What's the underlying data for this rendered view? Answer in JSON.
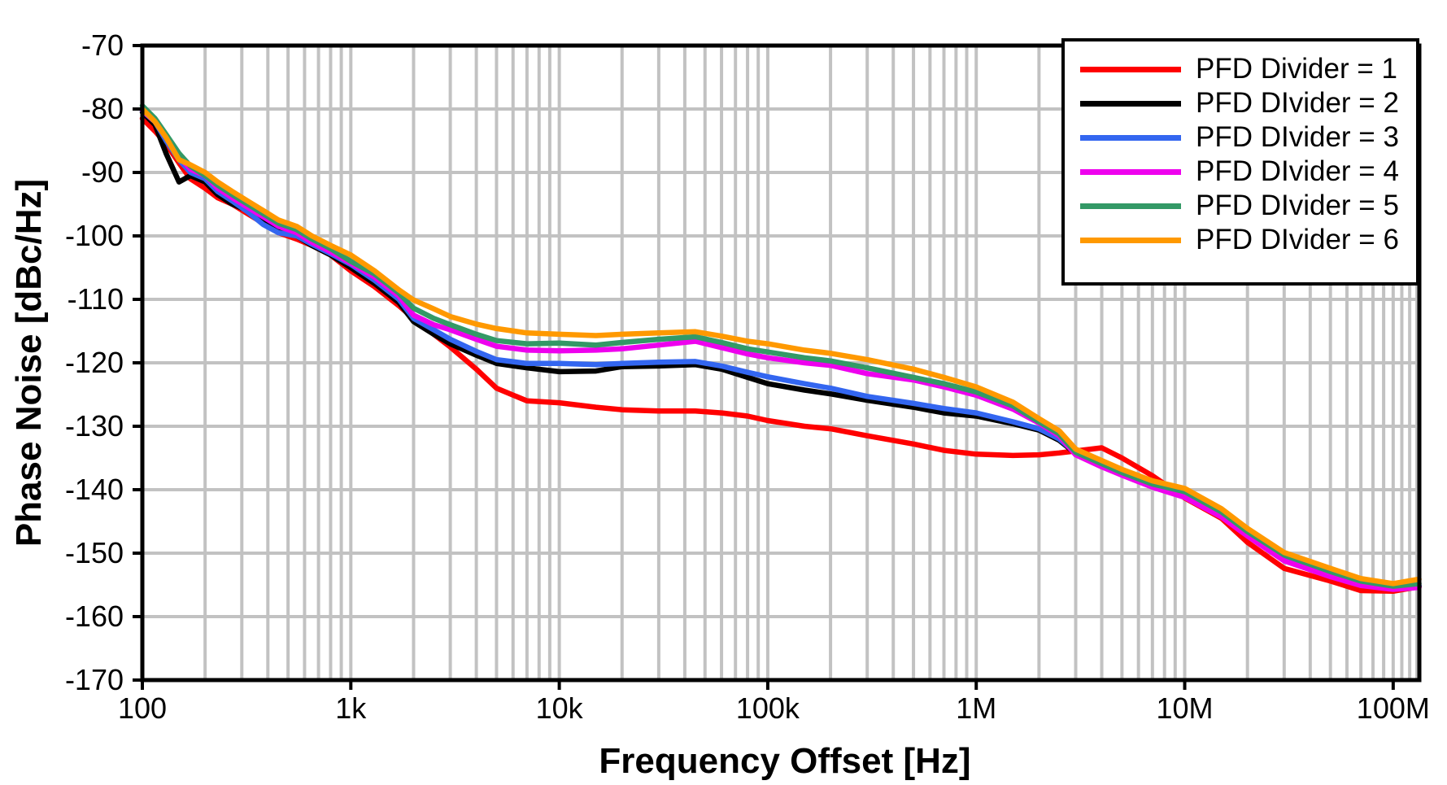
{
  "chart_data": {
    "type": "line",
    "title": "",
    "xlabel": "Frequency Offset [Hz]",
    "ylabel": "Phase Noise [dBc/Hz]",
    "x_scale": "log",
    "xlim": [
      100,
      133500000
    ],
    "ylim": [
      -170,
      -70
    ],
    "grid": true,
    "grid_color": "#c2c2c2",
    "legend_position": "top-right",
    "y_ticks": [
      -70,
      -80,
      -90,
      -100,
      -110,
      -120,
      -130,
      -140,
      -150,
      -160,
      -170
    ],
    "x_ticks": [
      {
        "value": 100,
        "label": "100"
      },
      {
        "value": 1000,
        "label": "1k"
      },
      {
        "value": 10000,
        "label": "10k"
      },
      {
        "value": 100000,
        "label": "100k"
      },
      {
        "value": 1000000,
        "label": "1M"
      },
      {
        "value": 10000000,
        "label": "10M"
      },
      {
        "value": 100000000,
        "label": "100M"
      }
    ],
    "x": [
      100,
      115,
      130,
      150,
      170,
      200,
      230,
      270,
      320,
      380,
      450,
      550,
      650,
      800,
      1000,
      1300,
      1700,
      2000,
      2500,
      3000,
      4000,
      5000,
      7000,
      10000,
      15000,
      20000,
      30000,
      45000,
      60000,
      80000,
      100000,
      150000,
      200000,
      300000,
      500000,
      700000,
      1000000,
      1500000,
      2000000,
      2500000,
      3000000,
      4000000,
      5000000,
      7000000,
      10000000,
      15000000,
      20000000,
      30000000,
      50000000,
      70000000,
      100000000,
      133000000
    ],
    "series": [
      {
        "name": "PFD Divider = 1",
        "color": "#ff0000",
        "values": [
          -81.5,
          -83.5,
          -85.5,
          -88.5,
          -91,
          -92.5,
          -94,
          -95,
          -96.5,
          -98,
          -99.5,
          -100.5,
          -101.5,
          -103,
          -105.5,
          -108,
          -111,
          -113,
          -115.5,
          -117.5,
          -121,
          -124,
          -126,
          -126.3,
          -127,
          -127.4,
          -127.6,
          -127.6,
          -127.9,
          -128.4,
          -129.1,
          -130,
          -130.4,
          -131.5,
          -132.8,
          -133.8,
          -134.4,
          -134.6,
          -134.5,
          -134.2,
          -133.9,
          -133.4,
          -135,
          -137.8,
          -141.3,
          -144.5,
          -148.3,
          -152.4,
          -154.4,
          -155.9,
          -156,
          -155.3
        ]
      },
      {
        "name": "PFD DIvider = 2",
        "color": "#000000",
        "values": [
          -80.5,
          -82.5,
          -87,
          -91.5,
          -90.5,
          -91.5,
          -93.5,
          -95,
          -96,
          -97.5,
          -99,
          -100,
          -101.5,
          -103,
          -105,
          -107.5,
          -110.5,
          -113.5,
          -115.5,
          -117,
          -118.8,
          -120.1,
          -120.8,
          -121.4,
          -121.3,
          -120.6,
          -120.5,
          -120.3,
          -121,
          -122.3,
          -123.3,
          -124.3,
          -124.9,
          -125.9,
          -127,
          -127.9,
          -128.4,
          -129.6,
          -130.6,
          -132.2,
          -134.3,
          -136.1,
          -137.4,
          -139.3,
          -140.8,
          -143.9,
          -147,
          -150.8,
          -153.2,
          -154.7,
          -155.4,
          -155.2
        ]
      },
      {
        "name": "PFD DIvider = 3",
        "color": "#3366f0",
        "values": [
          -80.3,
          -82,
          -85,
          -88,
          -90,
          -91,
          -93,
          -94.5,
          -96.2,
          -98.2,
          -99.5,
          -100,
          -101.3,
          -102.8,
          -104.5,
          -107,
          -110,
          -113,
          -114.8,
          -116.3,
          -118.2,
          -119.5,
          -120.1,
          -120.1,
          -120.3,
          -120.1,
          -119.9,
          -119.8,
          -120.5,
          -121.5,
          -122.2,
          -123.3,
          -124,
          -125.3,
          -126.4,
          -127.2,
          -127.9,
          -129.3,
          -130.4,
          -132,
          -134.2,
          -136,
          -137.3,
          -139.2,
          -140.7,
          -143.8,
          -146.9,
          -150.7,
          -153.1,
          -154.6,
          -155.3,
          -155.1
        ]
      },
      {
        "name": "PFD DIvider = 4",
        "color": "#ee00ee",
        "values": [
          -80.2,
          -82,
          -84.5,
          -87.5,
          -89.5,
          -90.5,
          -92.5,
          -94,
          -95.5,
          -97,
          -98.5,
          -99.5,
          -101,
          -102.5,
          -104.3,
          -106.5,
          -109.5,
          -112.5,
          -114,
          -114.8,
          -116.3,
          -117.4,
          -118,
          -118.1,
          -118,
          -117.8,
          -117.2,
          -116.6,
          -117.6,
          -118.6,
          -119.2,
          -120,
          -120.4,
          -121.7,
          -122.7,
          -123.8,
          -125.1,
          -127.3,
          -129.5,
          -131.5,
          -134.5,
          -136.4,
          -137.7,
          -139.6,
          -141.2,
          -144.3,
          -147.3,
          -151.2,
          -153.7,
          -155.1,
          -155.7,
          -155.4
        ]
      },
      {
        "name": "PFD DIvider = 5",
        "color": "#339966",
        "values": [
          -79.5,
          -81.5,
          -84,
          -87,
          -89,
          -90.5,
          -92,
          -93.5,
          -95,
          -96.5,
          -98,
          -99,
          -100.5,
          -102,
          -104,
          -106,
          -109,
          -111.4,
          -113,
          -114,
          -115.5,
          -116.5,
          -117,
          -116.9,
          -117.2,
          -116.8,
          -116.3,
          -115.9,
          -116.8,
          -117.8,
          -118.3,
          -119.2,
          -119.7,
          -120.8,
          -122.3,
          -123.3,
          -124.6,
          -126.8,
          -129.3,
          -131.2,
          -134.1,
          -135.9,
          -137.3,
          -139.1,
          -140.3,
          -143.5,
          -146.6,
          -150.3,
          -152.9,
          -154.4,
          -155.2,
          -154.8
        ]
      },
      {
        "name": "PFD DIvider = 6",
        "color": "#ff9900",
        "values": [
          -80,
          -82,
          -84.5,
          -88,
          -88.8,
          -90,
          -91.5,
          -93,
          -94.5,
          -96,
          -97.5,
          -98.5,
          -100,
          -101.5,
          -103,
          -105.5,
          -108.5,
          -110.1,
          -111.5,
          -112.7,
          -113.9,
          -114.6,
          -115.3,
          -115.5,
          -115.7,
          -115.5,
          -115.3,
          -115.1,
          -115.8,
          -116.6,
          -117,
          -118,
          -118.5,
          -119.5,
          -121,
          -122.3,
          -123.8,
          -126.2,
          -128.8,
          -130.7,
          -133.6,
          -135.4,
          -136.8,
          -138.6,
          -139.8,
          -143,
          -146.1,
          -149.9,
          -152.4,
          -154,
          -154.8,
          -154.1
        ]
      }
    ]
  }
}
